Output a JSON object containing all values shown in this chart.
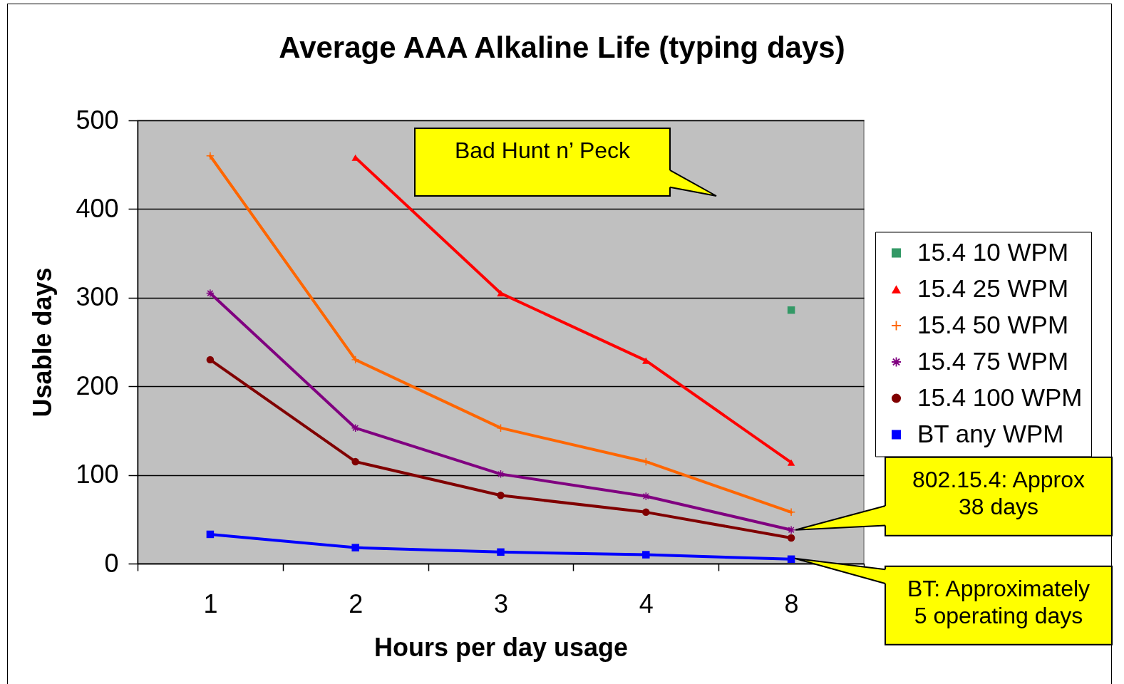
{
  "chart_data": {
    "type": "line",
    "title": "Average AAA Alkaline Life (typing days)",
    "xlabel": "Hours per day usage",
    "ylabel": "Usable days",
    "categories": [
      "1",
      "2",
      "3",
      "4",
      "8"
    ],
    "series": [
      {
        "name": "15.4 10 WPM",
        "color": "#339966",
        "marker": "square",
        "values": [
          null,
          null,
          null,
          null,
          286
        ]
      },
      {
        "name": "15.4 25 WPM",
        "color": "#ff0000",
        "marker": "triangle",
        "values": [
          null,
          458,
          305,
          229,
          114
        ]
      },
      {
        "name": "15.4 50 WPM",
        "color": "#ff6600",
        "marker": "cross",
        "values": [
          460,
          230,
          153,
          115,
          58
        ]
      },
      {
        "name": "15.4 75 WPM",
        "color": "#800080",
        "marker": "star",
        "values": [
          305,
          153,
          101,
          76,
          38
        ]
      },
      {
        "name": "15.4 100 WPM",
        "color": "#800000",
        "marker": "circle",
        "values": [
          230,
          115,
          77,
          58,
          29
        ]
      },
      {
        "name": "BT any WPM",
        "color": "#0000ff",
        "marker": "square",
        "values": [
          33,
          18,
          13,
          10,
          5
        ]
      }
    ],
    "ylim": [
      0,
      500
    ],
    "yticks": [
      0,
      100,
      200,
      300,
      400,
      500
    ],
    "grid": "y",
    "legend": "right",
    "line_style": "solid",
    "annotations": [
      "Bad Hunt n’ Peck",
      {
        "text": "802.15.4: Approx 38 days",
        "x": "8",
        "y": 38
      },
      {
        "text": "BT: Approximately 5 operating days",
        "x": "8",
        "y": 5
      }
    ]
  }
}
